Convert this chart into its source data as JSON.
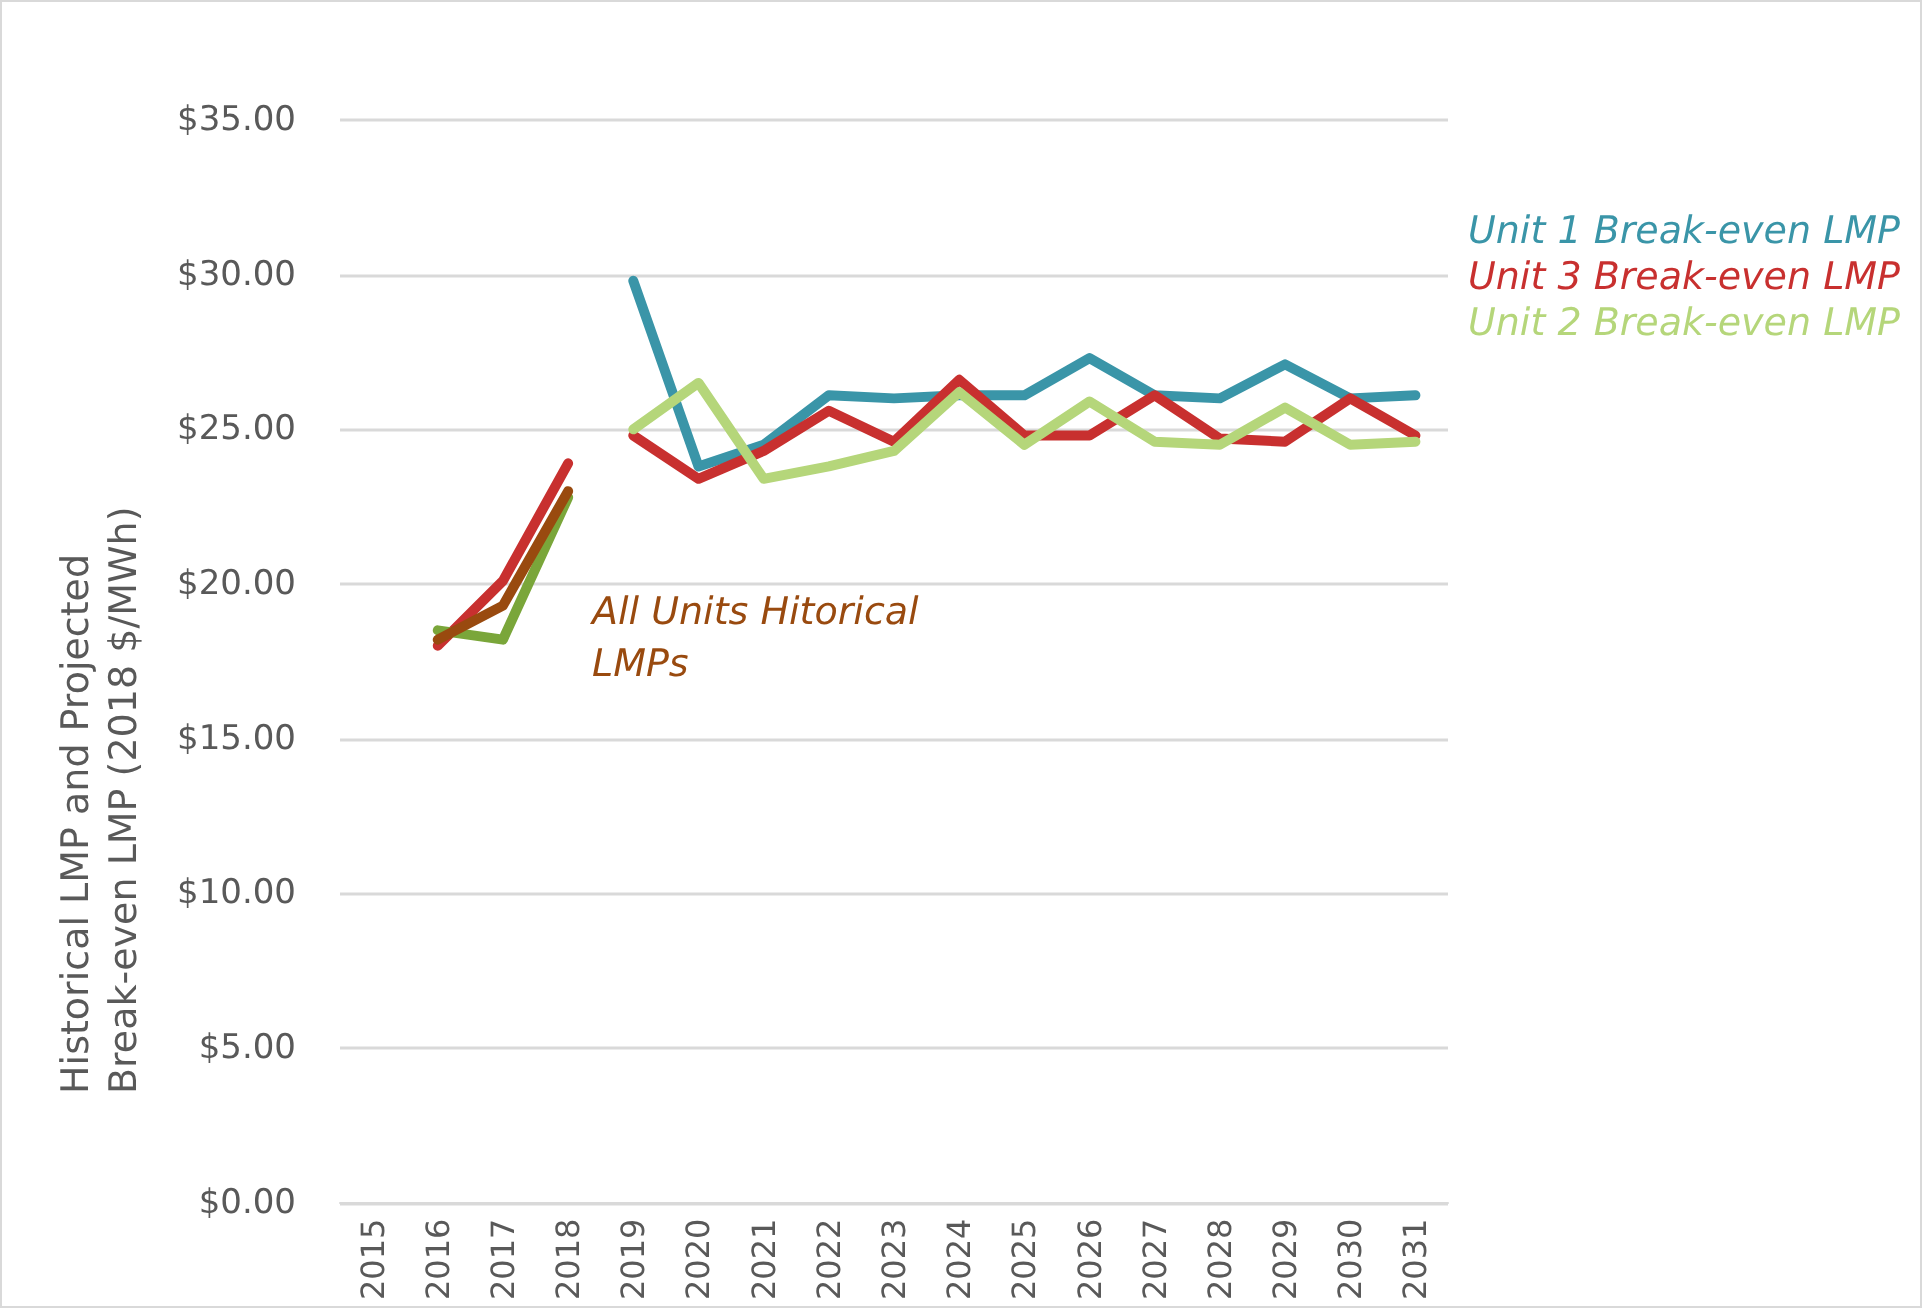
{
  "chart_data": {
    "type": "line",
    "ylabel": "Historical LMP and Projected Break-even LMP (2018 $/MWh)",
    "categories": [
      "2015",
      "2016",
      "2017",
      "2018",
      "2019",
      "2020",
      "2021",
      "2022",
      "2023",
      "2024",
      "2025",
      "2026",
      "2027",
      "2028",
      "2029",
      "2030",
      "2031"
    ],
    "series": [
      {
        "name": "Unit 1 Break-even LMP",
        "color": "#3a95a8",
        "values": [
          null,
          null,
          null,
          null,
          29.8,
          23.8,
          24.5,
          26.1,
          26.0,
          26.1,
          26.1,
          27.3,
          26.1,
          26.0,
          27.1,
          26.0,
          26.1
        ]
      },
      {
        "name": "Unit 3 Break-even LMP",
        "color": "#c8302f",
        "values": [
          null,
          null,
          null,
          null,
          24.8,
          23.4,
          24.3,
          25.6,
          24.6,
          26.6,
          24.8,
          24.8,
          26.1,
          24.7,
          24.6,
          26.0,
          24.8
        ]
      },
      {
        "name": "Unit 2 Break-even LMP",
        "color": "#b5d67a",
        "values": [
          null,
          null,
          null,
          null,
          25.0,
          26.5,
          23.4,
          23.8,
          24.3,
          26.2,
          24.5,
          25.9,
          24.6,
          24.5,
          25.7,
          24.5,
          24.6
        ]
      },
      {
        "color": "#c8302f",
        "values": [
          null,
          18.0,
          20.1,
          23.9,
          null,
          null,
          null,
          null,
          null,
          null,
          null,
          null,
          null,
          null,
          null,
          null,
          null
        ]
      },
      {
        "color": "#7aa63a",
        "values": [
          null,
          18.5,
          18.2,
          22.8,
          null,
          null,
          null,
          null,
          null,
          null,
          null,
          null,
          null,
          null,
          null,
          null,
          null
        ]
      },
      {
        "color": "#994a0f",
        "values": [
          null,
          18.2,
          19.3,
          23.0,
          null,
          null,
          null,
          null,
          null,
          null,
          null,
          null,
          null,
          null,
          null,
          null,
          null
        ]
      }
    ],
    "annotations": [
      "All Units Hitorical LMPs"
    ],
    "ylim": [
      0,
      35
    ],
    "yticks": [
      {
        "value": 0,
        "label": "$0.00"
      },
      {
        "value": 5,
        "label": "$5.00"
      },
      {
        "value": 10,
        "label": "$10.00"
      },
      {
        "value": 15,
        "label": "$15.00"
      },
      {
        "value": 20,
        "label": "$20.00"
      },
      {
        "value": 25,
        "label": "$25.00"
      },
      {
        "value": 30,
        "label": "$30.00"
      },
      {
        "value": 35,
        "label": "$35.00"
      }
    ],
    "grid": "y",
    "legend": "right",
    "marker": "none",
    "line_style": "solid"
  }
}
